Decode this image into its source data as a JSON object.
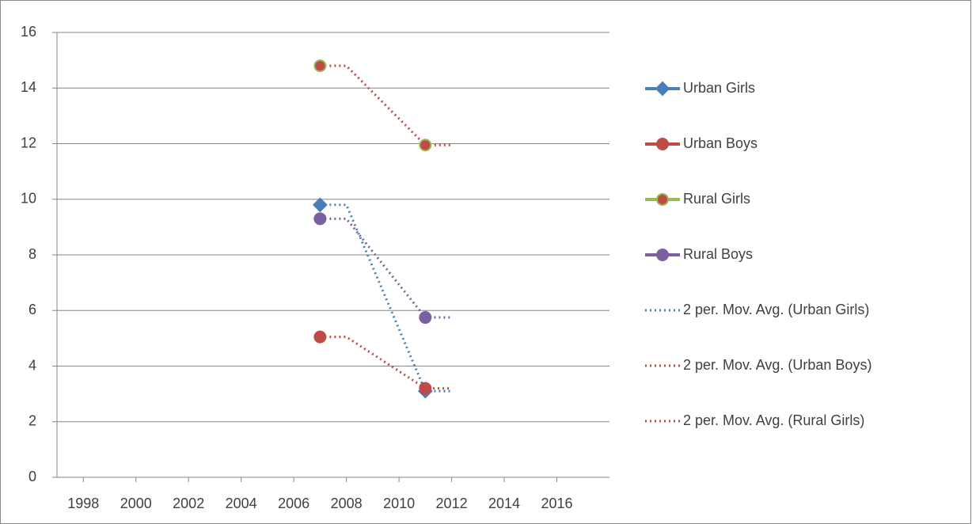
{
  "chart_data": {
    "type": "scatter",
    "x": [
      2007,
      2011
    ],
    "series": [
      {
        "name": "Urban Girls",
        "color": "#4a7ebb",
        "marker": "diamond",
        "values": [
          9.8,
          3.1
        ]
      },
      {
        "name": "Urban Boys",
        "color": "#be4b48",
        "marker": "circle",
        "values": [
          5.05,
          3.2
        ]
      },
      {
        "name": "Rural Girls",
        "color": "#98b954",
        "marker_fill": "#be4b48",
        "marker": "circle",
        "values": [
          14.8,
          11.95
        ]
      },
      {
        "name": "Rural Boys",
        "color": "#7d60a0",
        "marker": "circle",
        "values": [
          9.3,
          5.75
        ]
      }
    ],
    "trendlines": [
      {
        "name": "2 per. Mov. Avg. (Urban Girls)",
        "color": "#4a7ebb",
        "x": [
          2007,
          2008,
          2011,
          2012
        ],
        "values": [
          9.8,
          9.8,
          3.1,
          3.1
        ]
      },
      {
        "name": "2 per. Mov. Avg. (Urban Boys)",
        "color": "#be4b48",
        "x": [
          2007,
          2008,
          2011,
          2012
        ],
        "values": [
          5.05,
          5.05,
          3.2,
          3.2
        ]
      },
      {
        "name": "2 per. Mov. Avg. (Rural Girls)",
        "color": "#be4b48",
        "x": [
          2007,
          2008,
          2011,
          2012
        ],
        "values": [
          14.8,
          14.8,
          11.95,
          11.95
        ]
      },
      {
        "color": "#7d60a0",
        "x": [
          2007,
          2008,
          2011,
          2012
        ],
        "values": [
          9.3,
          9.3,
          5.75,
          5.75
        ]
      }
    ],
    "xlim": [
      1997,
      2018
    ],
    "xticks": [
      1998,
      2000,
      2002,
      2004,
      2006,
      2008,
      2010,
      2012,
      2014,
      2016
    ],
    "ylim": [
      0,
      16
    ],
    "yticks": [
      0,
      2,
      4,
      6,
      8,
      10,
      12,
      14,
      16
    ],
    "grid": true,
    "legend": "right"
  }
}
